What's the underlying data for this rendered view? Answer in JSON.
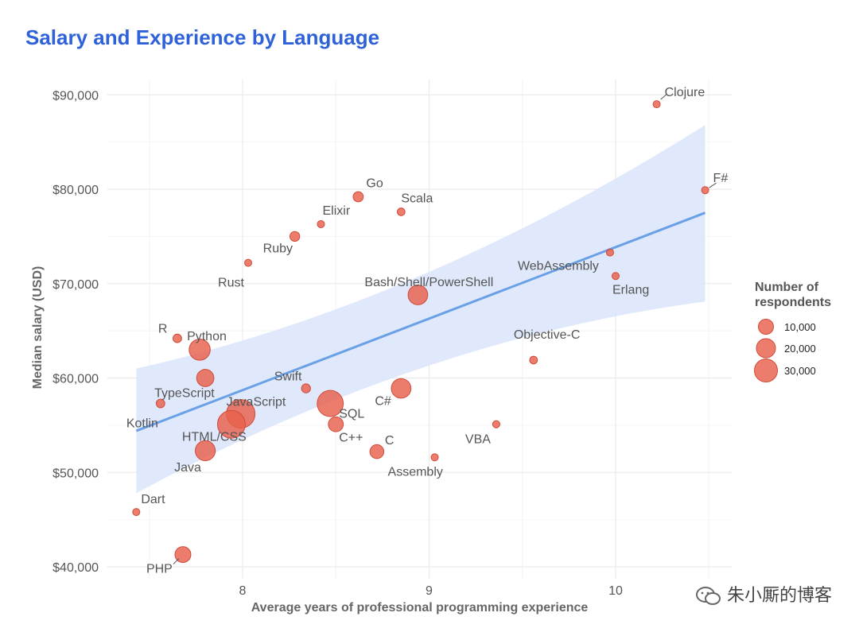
{
  "chart_data": {
    "type": "scatter",
    "title": "Salary and Experience by Language",
    "xlabel": "Average years of professional programming experience",
    "ylabel": "Median salary (USD)",
    "xlim": [
      7.4,
      10.65
    ],
    "ylim": [
      39000,
      92000
    ],
    "x_ticks": [
      8,
      9,
      10
    ],
    "x_tick_labels": [
      "8",
      "9",
      "10"
    ],
    "y_ticks": [
      40000,
      50000,
      60000,
      70000,
      80000,
      90000
    ],
    "y_tick_labels": [
      "$40,000",
      "$50,000",
      "$60,000",
      "$70,000",
      "$80,000",
      "$90,000"
    ],
    "points": [
      {
        "label": "Clojure",
        "x": 10.22,
        "y": 89000,
        "respondents": 1000
      },
      {
        "label": "F#",
        "x": 10.48,
        "y": 79900,
        "respondents": 1000
      },
      {
        "label": "Go",
        "x": 8.62,
        "y": 79200,
        "respondents": 7000
      },
      {
        "label": "Scala",
        "x": 8.85,
        "y": 77600,
        "respondents": 4000
      },
      {
        "label": "Elixir",
        "x": 8.42,
        "y": 76300,
        "respondents": 1000
      },
      {
        "label": "Ruby",
        "x": 8.28,
        "y": 75000,
        "respondents": 6500
      },
      {
        "label": "Rust",
        "x": 8.03,
        "y": 72200,
        "respondents": 3000
      },
      {
        "label": "WebAssembly",
        "x": 9.97,
        "y": 73300,
        "respondents": 800
      },
      {
        "label": "Erlang",
        "x": 10.0,
        "y": 70800,
        "respondents": 700
      },
      {
        "label": "Bash/Shell/PowerShell",
        "x": 8.94,
        "y": 68800,
        "respondents": 26000
      },
      {
        "label": "R",
        "x": 7.65,
        "y": 64200,
        "respondents": 5000
      },
      {
        "label": "Objective-C",
        "x": 9.56,
        "y": 61900,
        "respondents": 4000
      },
      {
        "label": "Python",
        "x": 7.77,
        "y": 63000,
        "respondents": 30000
      },
      {
        "label": "Swift",
        "x": 8.34,
        "y": 58900,
        "respondents": 5500
      },
      {
        "label": "C#",
        "x": 8.85,
        "y": 58900,
        "respondents": 26000
      },
      {
        "label": "TypeScript",
        "x": 7.8,
        "y": 60000,
        "respondents": 20000
      },
      {
        "label": "Kotlin",
        "x": 7.56,
        "y": 57300,
        "respondents": 5000
      },
      {
        "label": "JavaScript",
        "x": 7.99,
        "y": 56200,
        "respondents": 55000
      },
      {
        "label": "SQL",
        "x": 8.47,
        "y": 57300,
        "respondents": 46000
      },
      {
        "label": "HTML/CSS",
        "x": 7.94,
        "y": 55100,
        "respondents": 52000
      },
      {
        "label": "C++",
        "x": 8.5,
        "y": 55100,
        "respondents": 15000
      },
      {
        "label": "VBA",
        "x": 9.36,
        "y": 55100,
        "respondents": 3500
      },
      {
        "label": "Java",
        "x": 7.8,
        "y": 52300,
        "respondents": 27000
      },
      {
        "label": "C",
        "x": 8.72,
        "y": 52200,
        "respondents": 13000
      },
      {
        "label": "Assembly",
        "x": 9.03,
        "y": 51600,
        "respondents": 3000
      },
      {
        "label": "Dart",
        "x": 7.43,
        "y": 45800,
        "respondents": 1200
      },
      {
        "label": "PHP",
        "x": 7.68,
        "y": 41300,
        "respondents": 17000
      }
    ],
    "trend": {
      "x_start": 7.43,
      "y_start": 54400,
      "x_end": 10.48,
      "y_end": 77500,
      "ci_upper_start": 61000,
      "ci_lower_start": 47800,
      "ci_upper_end": 86800,
      "ci_lower_end": 68100
    },
    "legend": {
      "title_line1": "Number of",
      "title_line2": "respondents",
      "position": "right",
      "entries": [
        {
          "label": "10,000",
          "value": 10000
        },
        {
          "label": "20,000",
          "value": 20000
        },
        {
          "label": "30,000",
          "value": 30000
        }
      ]
    },
    "colors": {
      "point": "#e8604c",
      "point_stroke": "#d14a38",
      "trend": "#6aa0e6",
      "ci": "#dbe7fb",
      "grid": "#ebebeb",
      "title": "#2f62d8"
    }
  },
  "watermark": "朱小厮的博客"
}
